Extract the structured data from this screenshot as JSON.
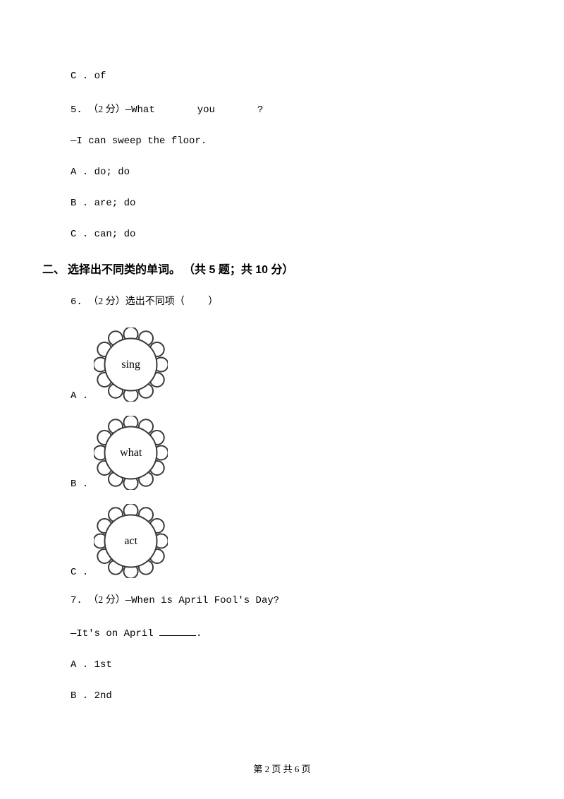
{
  "q4_optC": "C . of",
  "q5": {
    "num": "5. ",
    "points": "（2 分）",
    "prompt_part1": "—What",
    "prompt_part2": "you",
    "prompt_part3": "?",
    "response": "—I can sweep the floor.",
    "optA": "A . do; do",
    "optB": "B . are; do",
    "optC": "C . can; do"
  },
  "section2": {
    "num": "二、",
    "title": "选择出不同类的单词。",
    "meta": "（共 5 题；共 10 分）"
  },
  "q6": {
    "num": "6. ",
    "points": "（2 分）",
    "prompt": "选出不同项（",
    "prompt_end": "）",
    "optA_label": "A .",
    "optA_word": "sing",
    "optB_label": "B .",
    "optB_word": "what",
    "optC_label": "C .",
    "optC_word": "act"
  },
  "q7": {
    "num": "7. ",
    "points": "（2 分）",
    "prompt": "—When is April Fool's Day?",
    "response_prefix": "—It's on April ",
    "response_suffix": ".",
    "optA": "A . 1st",
    "optB": "B . 2nd"
  },
  "footer": {
    "page_label": "第 2 页 共 6 页"
  },
  "flower_svg_color": "#3a3a3a",
  "flower_fill": "#ffffff"
}
